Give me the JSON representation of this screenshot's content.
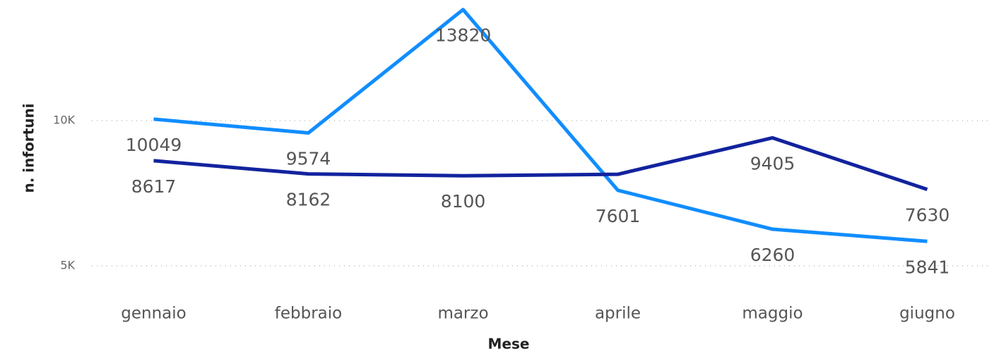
{
  "chart_data": {
    "type": "line",
    "xlabel": "Mese",
    "ylabel": "n. infortuni",
    "categories": [
      "gennaio",
      "febbraio",
      "marzo",
      "aprile",
      "maggio",
      "giugno"
    ],
    "series": [
      {
        "color": "#118DFF",
        "values": [
          10049,
          9574,
          13820,
          7601,
          6260,
          5841
        ]
      },
      {
        "color": "#12239E",
        "values": [
          8617,
          8162,
          8100,
          8150,
          9405,
          7630
        ],
        "value_labels": [
          "8617",
          "8162",
          "8100",
          null,
          "9405",
          "7630"
        ]
      }
    ],
    "ylim": [
      4100,
      14150
    ],
    "yticks": [
      {
        "value": 5000,
        "label": "5K"
      },
      {
        "value": 10000,
        "label": "10K"
      }
    ],
    "grid": true
  }
}
